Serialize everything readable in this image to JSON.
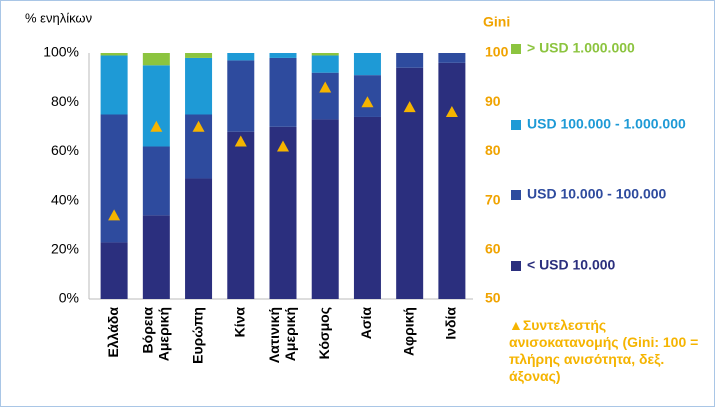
{
  "chart_data": {
    "type": "stacked_bar",
    "y_label": "% ενηλίκων",
    "y2_label": "Gini",
    "categories": [
      "Ελλάδα",
      "Βόρεια Αμερική",
      "Ευρώπη",
      "Κίνα",
      "Λατινική Αμερική",
      "Κόσμος",
      "Ασία",
      "Αφρική",
      "Ινδία"
    ],
    "series": [
      {
        "name": "< USD 10.000",
        "color": "#2b2f7e",
        "values": [
          23,
          34,
          49,
          68,
          70,
          73,
          74,
          94,
          96
        ]
      },
      {
        "name": "USD 10.000 - 100.000",
        "color": "#2e4b9e",
        "values": [
          52,
          28,
          26,
          29,
          28,
          19,
          17,
          6,
          4
        ]
      },
      {
        "name": "USD 100.000 - 1.000.000",
        "color": "#1e9ad6",
        "values": [
          24,
          33,
          23,
          3,
          2,
          7,
          9,
          0,
          0
        ]
      },
      {
        "name": "> USD 1.000.000",
        "color": "#8cc43f",
        "values": [
          1,
          5,
          2,
          0,
          0,
          1,
          0,
          0,
          0
        ]
      },
      {
        "name": "▲Συντελεστής ανισοκατανομής (Gini: 100 = πλήρης ανισότητα, δεξ. άξονας)",
        "color": "#f5b400",
        "axis": "y2",
        "marker": "triangle",
        "values": [
          67,
          85,
          85,
          82,
          81,
          93,
          90,
          89,
          88
        ]
      }
    ],
    "ylim": [
      0,
      100
    ],
    "yticks": [
      {
        "value": 0,
        "label": "0%"
      },
      {
        "value": 20,
        "label": "20%"
      },
      {
        "value": 40,
        "label": "40%"
      },
      {
        "value": 60,
        "label": "60%"
      },
      {
        "value": 80,
        "label": "80%"
      },
      {
        "value": 100,
        "label": "100%"
      }
    ],
    "y2lim": [
      50,
      100
    ],
    "y2ticks": [
      50,
      60,
      70,
      80,
      90,
      100
    ],
    "y2_color": "#f0a300",
    "legend": "right"
  }
}
